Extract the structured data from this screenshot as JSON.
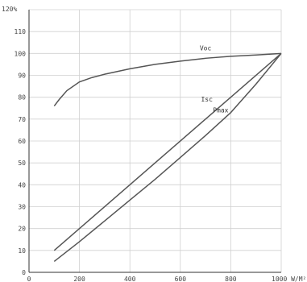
{
  "chart_data": {
    "type": "line",
    "title": "",
    "xlabel": "",
    "ylabel": "",
    "x_unit": "W/M²",
    "y_unit": "%",
    "xlim": [
      0,
      1000
    ],
    "ylim": [
      0,
      120
    ],
    "x_ticks": [
      0,
      200,
      400,
      600,
      800,
      1000
    ],
    "y_ticks": [
      0,
      10,
      20,
      30,
      40,
      50,
      60,
      70,
      80,
      90,
      100,
      110,
      120
    ],
    "x_tick_labels": [
      "0",
      "200",
      "400",
      "600",
      "800",
      "1000 W/M²"
    ],
    "y_tick_labels": [
      "0",
      "10",
      "20",
      "30",
      "40",
      "50",
      "60",
      "70",
      "80",
      "90",
      "100",
      "110",
      "120%"
    ],
    "grid": true,
    "series": [
      {
        "name": "Voc",
        "x": [
          100,
          120,
          150,
          200,
          250,
          300,
          400,
          500,
          600,
          700,
          800,
          900,
          1000
        ],
        "y": [
          76,
          79,
          83,
          87,
          89,
          90.5,
          93,
          95,
          96.5,
          97.8,
          98.7,
          99.3,
          100
        ]
      },
      {
        "name": "Isc",
        "x": [
          100,
          1000
        ],
        "y": [
          10,
          100
        ]
      },
      {
        "name": "Pmax",
        "x": [
          100,
          200,
          300,
          400,
          500,
          600,
          700,
          800,
          900,
          1000
        ],
        "y": [
          5,
          14,
          23.5,
          33,
          42.5,
          52.5,
          62.5,
          73,
          86,
          100
        ]
      }
    ]
  }
}
